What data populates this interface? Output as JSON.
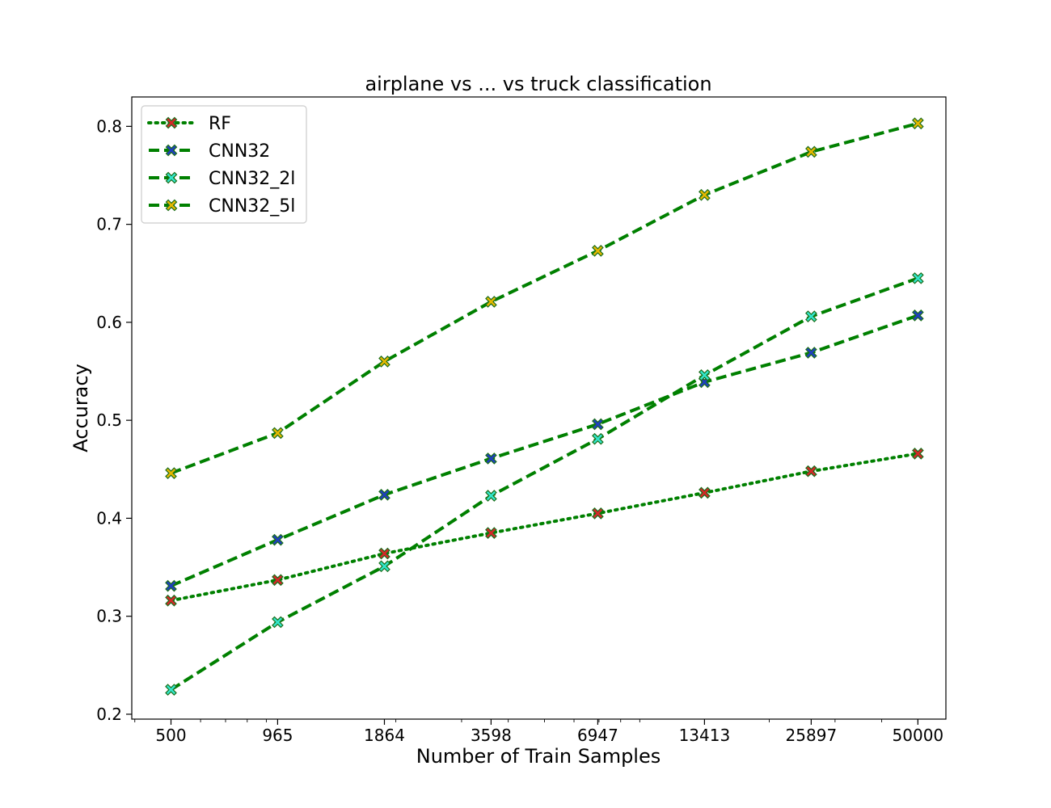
{
  "chart_data": {
    "type": "line",
    "title": "airplane vs ... vs truck classification",
    "xlabel": "Number of Train Samples",
    "ylabel": "Accuracy",
    "x_scale": "log",
    "x": [
      500,
      965,
      1864,
      3598,
      6947,
      13413,
      25897,
      50000
    ],
    "x_tick_labels": [
      "500",
      "965",
      "1864",
      "3598",
      "6947",
      "13413",
      "25897",
      "50000"
    ],
    "y_ticks": [
      0.2,
      0.3,
      0.4,
      0.5,
      0.6,
      0.7,
      0.8
    ],
    "y_tick_labels": [
      "0.2",
      "0.3",
      "0.4",
      "0.5",
      "0.6",
      "0.7",
      "0.8"
    ],
    "ylim": [
      0.195,
      0.83
    ],
    "legend_position": "upper-left",
    "grid": false,
    "line_color": "#008000",
    "series": [
      {
        "name": "RF",
        "style": "dotted",
        "marker_color": "#d62728",
        "values": [
          0.316,
          0.337,
          0.364,
          0.385,
          0.405,
          0.426,
          0.448,
          0.466
        ]
      },
      {
        "name": "CNN32",
        "style": "dashed",
        "marker_color": "#1f3fbf",
        "values": [
          0.331,
          0.378,
          0.424,
          0.461,
          0.496,
          0.539,
          0.569,
          0.607
        ]
      },
      {
        "name": "CNN32_2l",
        "style": "dashed",
        "marker_color": "#33e6cc",
        "values": [
          0.225,
          0.294,
          0.351,
          0.423,
          0.481,
          0.546,
          0.606,
          0.645
        ]
      },
      {
        "name": "CNN32_5l",
        "style": "dashed",
        "marker_color": "#e6b800",
        "values": [
          0.446,
          0.487,
          0.56,
          0.621,
          0.673,
          0.73,
          0.774,
          0.803
        ]
      }
    ]
  }
}
